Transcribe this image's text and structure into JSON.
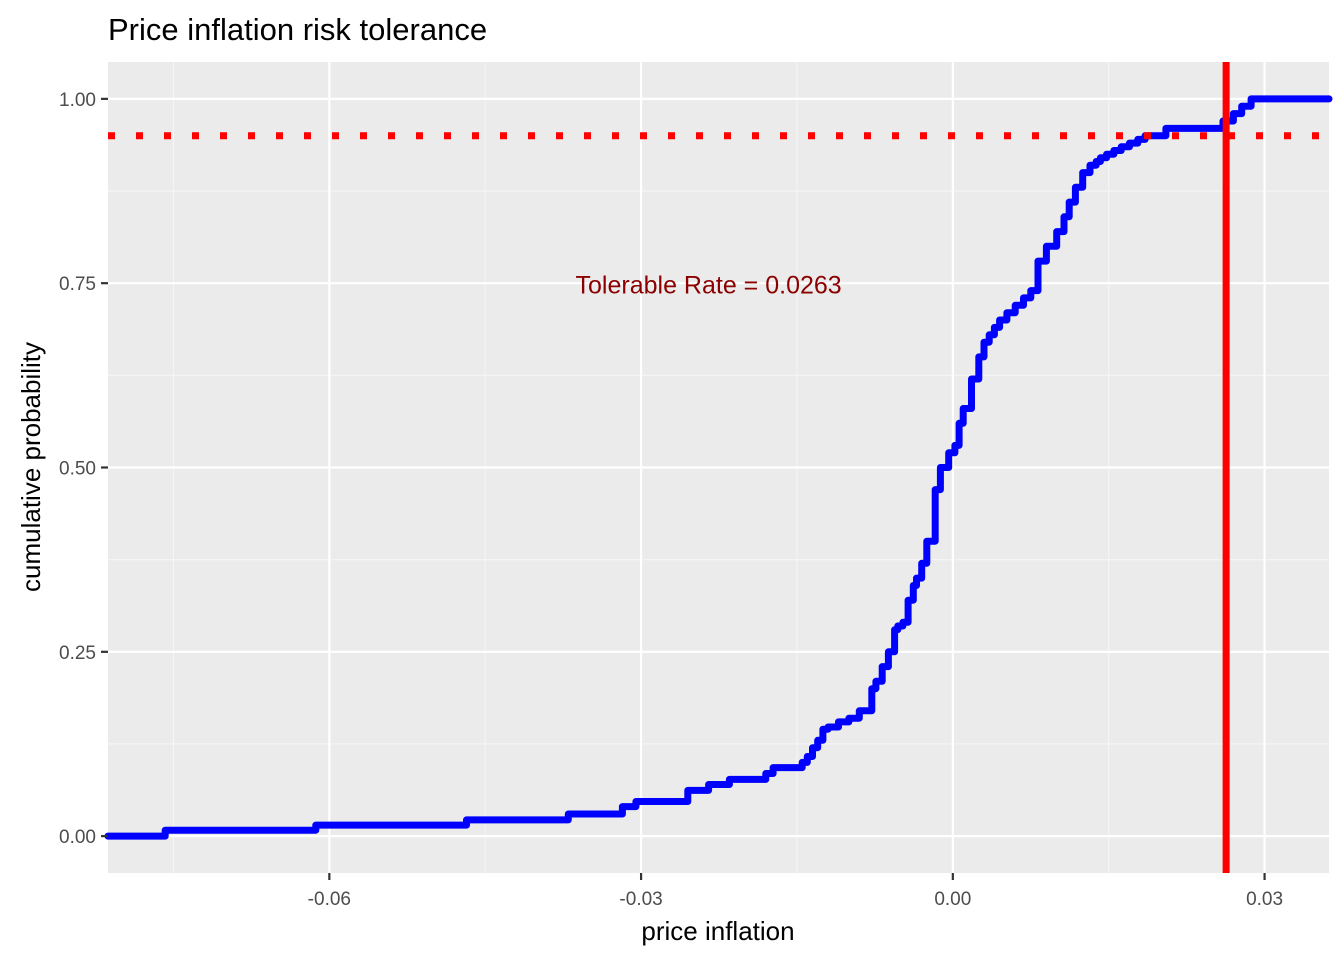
{
  "chart_data": {
    "type": "line",
    "title": "Price inflation risk tolerance",
    "xlabel": "price inflation",
    "ylabel": "cumulative probability",
    "xlim": [
      -0.0813,
      0.0362
    ],
    "ylim": [
      -0.05,
      1.05
    ],
    "x_ticks": [
      -0.06,
      -0.03,
      0.0,
      0.03
    ],
    "x_tick_labels": [
      "-0.06",
      "-0.03",
      "0.00",
      "0.03"
    ],
    "y_ticks": [
      0.0,
      0.25,
      0.5,
      0.75,
      1.0
    ],
    "y_tick_labels": [
      "0.00",
      "0.25",
      "0.50",
      "0.75",
      "1.00"
    ],
    "grid": true,
    "series": [
      {
        "color": "#0000ff",
        "step": true,
        "x": [
          -0.0813,
          -0.0758,
          -0.0613,
          -0.0468,
          -0.037,
          -0.0318,
          -0.0305,
          -0.0255,
          -0.0235,
          -0.0215,
          -0.018,
          -0.0173,
          -0.0145,
          -0.014,
          -0.0135,
          -0.013,
          -0.0125,
          -0.012,
          -0.011,
          -0.01,
          -0.009,
          -0.0078,
          -0.0074,
          -0.0068,
          -0.0062,
          -0.0056,
          -0.0053,
          -0.0048,
          -0.0043,
          -0.0038,
          -0.0035,
          -0.003,
          -0.0025,
          -0.0017,
          -0.0012,
          -0.0004,
          0.0002,
          0.0006,
          0.001,
          0.0018,
          0.0025,
          0.003,
          0.0035,
          0.004,
          0.0045,
          0.0052,
          0.006,
          0.0068,
          0.0075,
          0.0082,
          0.009,
          0.01,
          0.0107,
          0.0112,
          0.0118,
          0.0125,
          0.0132,
          0.0138,
          0.0142,
          0.0148,
          0.0155,
          0.0162,
          0.017,
          0.0178,
          0.0185,
          0.0205,
          0.026,
          0.027,
          0.0278,
          0.0287,
          0.03,
          0.031,
          0.0362
        ],
        "y": [
          0.0,
          0.008,
          0.015,
          0.022,
          0.03,
          0.04,
          0.047,
          0.062,
          0.07,
          0.077,
          0.085,
          0.093,
          0.1,
          0.108,
          0.12,
          0.13,
          0.145,
          0.148,
          0.155,
          0.16,
          0.17,
          0.2,
          0.21,
          0.23,
          0.25,
          0.28,
          0.285,
          0.29,
          0.32,
          0.34,
          0.35,
          0.37,
          0.4,
          0.47,
          0.5,
          0.52,
          0.53,
          0.56,
          0.58,
          0.62,
          0.65,
          0.67,
          0.68,
          0.69,
          0.7,
          0.71,
          0.72,
          0.73,
          0.74,
          0.78,
          0.8,
          0.82,
          0.84,
          0.86,
          0.88,
          0.9,
          0.91,
          0.915,
          0.92,
          0.925,
          0.93,
          0.935,
          0.94,
          0.945,
          0.95,
          0.96,
          0.97,
          0.98,
          0.99,
          1.0,
          1.0,
          1.0,
          1.0
        ]
      }
    ],
    "reference_lines": [
      {
        "orientation": "horizontal",
        "value": 0.95,
        "color": "#ff0000",
        "style": "dotted"
      },
      {
        "orientation": "vertical",
        "value": 0.0263,
        "color": "#ff0000",
        "style": "solid"
      }
    ],
    "annotation": {
      "text": "Tolerable Rate =  0.0263",
      "x": -0.0235,
      "y": 0.748,
      "color": "#8b0000"
    },
    "colors": {
      "panel_background": "#ebebeb",
      "grid_major": "#ffffff",
      "grid_minor": "#f5f5f5",
      "cdf_line": "#0000ff",
      "reference": "#ff0000"
    }
  }
}
